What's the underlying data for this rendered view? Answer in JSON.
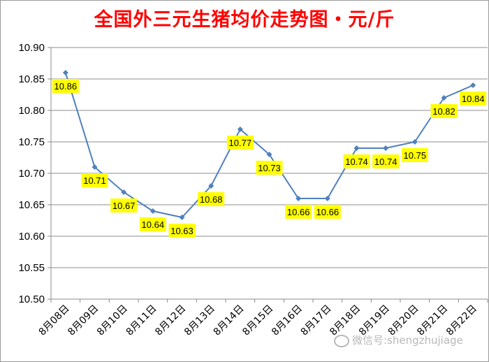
{
  "chart_data": {
    "type": "line",
    "title": "全国外三元生猪均价走势图・元/斤",
    "categories": [
      "8月08日",
      "8月09日",
      "8月10日",
      "8月11日",
      "8月12日",
      "8月13日",
      "8月14日",
      "8月15日",
      "8月16日",
      "8月17日",
      "8月18日",
      "8月19日",
      "8月20日",
      "8月21日",
      "8月22日"
    ],
    "values": [
      10.86,
      10.71,
      10.67,
      10.64,
      10.63,
      10.68,
      10.77,
      10.73,
      10.66,
      10.66,
      10.74,
      10.74,
      10.75,
      10.82,
      10.84
    ],
    "data_labels": [
      "10.86",
      "10.71",
      "10.67",
      "10.64",
      "10.63",
      "10.68",
      "10.77",
      "10.73",
      "10.66",
      "10.66",
      "10.74",
      "10.74",
      "10.75",
      "10.82",
      "10.84"
    ],
    "yticks": [
      "10.50",
      "10.55",
      "10.60",
      "10.65",
      "10.70",
      "10.75",
      "10.80",
      "10.85",
      "10.90"
    ],
    "ylim": [
      10.5,
      10.9
    ],
    "xlabel": "",
    "ylabel": "",
    "grid": "horizontal",
    "line_color": "#4f81bd",
    "label_bg": "#ffff00",
    "title_color": "#ff0000"
  },
  "watermark": {
    "icon": "wechat-icon",
    "text": "微信号:shengzhujiage"
  }
}
